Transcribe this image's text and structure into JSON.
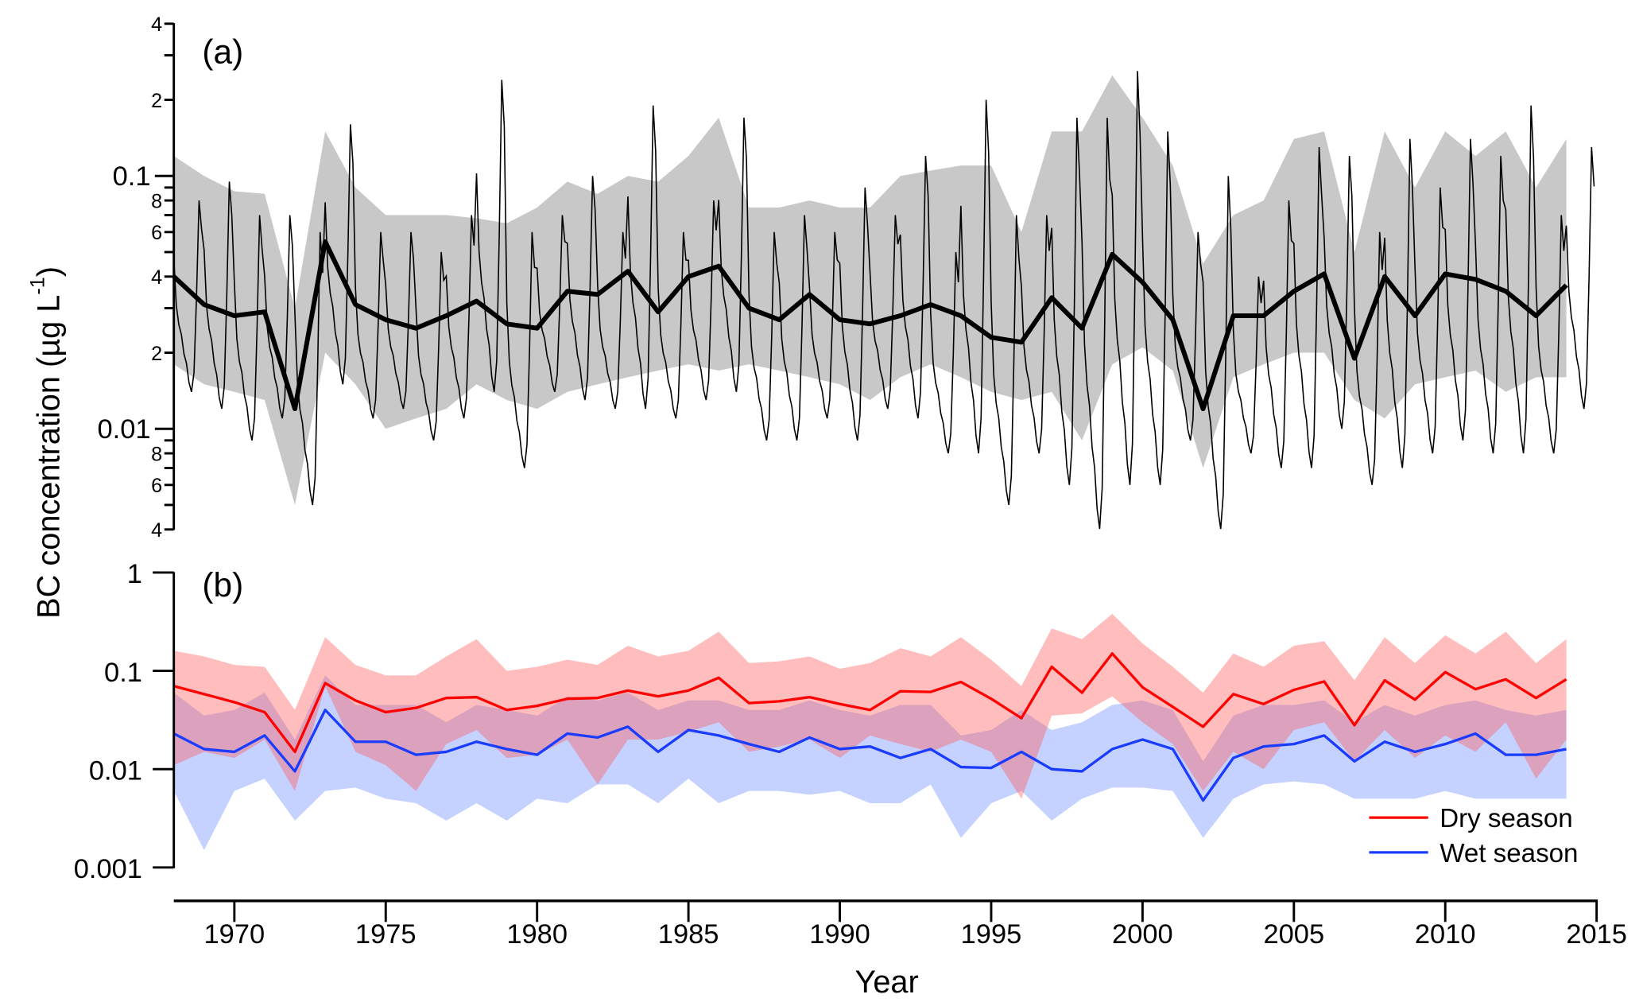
{
  "chart_data": [
    {
      "type": "line",
      "panel_label": "(a)",
      "ylabel": "BC concentration (µg L",
      "ylabel_sup": "-1",
      "ylabel_close": ")",
      "yscale": "log",
      "ylim": [
        0.004,
        0.4
      ],
      "ytick_labels": [
        {
          "v": 0.4,
          "t": "4"
        },
        {
          "v": 0.2,
          "t": "2"
        },
        {
          "v": 0.1,
          "t": "0.1"
        },
        {
          "v": 0.08,
          "t": "8"
        },
        {
          "v": 0.06,
          "t": "6"
        },
        {
          "v": 0.04,
          "t": "4"
        },
        {
          "v": 0.02,
          "t": "2"
        },
        {
          "v": 0.01,
          "t": "0.01"
        },
        {
          "v": 0.008,
          "t": "8"
        },
        {
          "v": 0.006,
          "t": "6"
        },
        {
          "v": 0.004,
          "t": "4"
        }
      ],
      "x_start": 1968,
      "annual_mean": [
        0.04,
        0.031,
        0.028,
        0.029,
        0.012,
        0.055,
        0.031,
        0.027,
        0.025,
        0.028,
        0.032,
        0.026,
        0.025,
        0.035,
        0.034,
        0.042,
        0.029,
        0.04,
        0.044,
        0.03,
        0.027,
        0.034,
        0.027,
        0.026,
        0.028,
        0.031,
        0.028,
        0.023,
        0.022,
        0.033,
        0.025,
        0.049,
        0.038,
        0.027,
        0.012,
        0.028,
        0.028,
        0.035,
        0.041,
        0.019,
        0.04,
        0.028,
        0.041,
        0.039,
        0.035,
        0.028,
        0.037
      ],
      "band_upper": [
        0.12,
        0.1,
        0.087,
        0.085,
        0.03,
        0.15,
        0.09,
        0.07,
        0.07,
        0.07,
        0.068,
        0.065,
        0.075,
        0.095,
        0.085,
        0.1,
        0.095,
        0.12,
        0.17,
        0.075,
        0.075,
        0.08,
        0.075,
        0.075,
        0.1,
        0.105,
        0.11,
        0.11,
        0.06,
        0.15,
        0.15,
        0.25,
        0.17,
        0.11,
        0.045,
        0.07,
        0.08,
        0.14,
        0.15,
        0.05,
        0.15,
        0.09,
        0.15,
        0.12,
        0.15,
        0.09,
        0.14
      ],
      "band_lower": [
        0.018,
        0.015,
        0.014,
        0.013,
        0.005,
        0.02,
        0.015,
        0.01,
        0.011,
        0.012,
        0.015,
        0.013,
        0.012,
        0.014,
        0.015,
        0.016,
        0.017,
        0.018,
        0.017,
        0.018,
        0.017,
        0.016,
        0.015,
        0.013,
        0.016,
        0.018,
        0.016,
        0.014,
        0.013,
        0.014,
        0.009,
        0.018,
        0.021,
        0.017,
        0.007,
        0.016,
        0.018,
        0.02,
        0.02,
        0.013,
        0.011,
        0.015,
        0.016,
        0.017,
        0.014,
        0.016,
        0.016
      ],
      "monthly_annual_max": [
        0.08,
        0.095,
        0.07,
        0.07,
        0.06,
        0.16,
        0.06,
        0.06,
        0.05,
        0.07,
        0.24,
        0.06,
        0.07,
        0.1,
        0.06,
        0.19,
        0.06,
        0.08,
        0.17,
        0.06,
        0.07,
        0.06,
        0.09,
        0.07,
        0.12,
        0.05,
        0.2,
        0.07,
        0.07,
        0.17,
        0.17,
        0.26,
        0.15,
        0.06,
        0.1,
        0.04,
        0.08,
        0.13,
        0.12,
        0.06,
        0.14,
        0.09,
        0.14,
        0.12,
        0.19,
        0.07,
        0.13
      ],
      "monthly_annual_min": [
        0.014,
        0.012,
        0.009,
        0.011,
        0.005,
        0.015,
        0.011,
        0.012,
        0.009,
        0.011,
        0.014,
        0.007,
        0.014,
        0.013,
        0.012,
        0.012,
        0.011,
        0.013,
        0.014,
        0.009,
        0.009,
        0.011,
        0.009,
        0.012,
        0.011,
        0.008,
        0.008,
        0.005,
        0.008,
        0.006,
        0.004,
        0.006,
        0.006,
        0.009,
        0.004,
        0.008,
        0.007,
        0.007,
        0.01,
        0.006,
        0.007,
        0.008,
        0.009,
        0.008,
        0.008,
        0.008,
        0.012
      ]
    },
    {
      "type": "line",
      "panel_label": "(b)",
      "yscale": "log",
      "ylim": [
        0.001,
        1
      ],
      "ytick_labels": [
        {
          "v": 1,
          "t": "1"
        },
        {
          "v": 0.1,
          "t": "0.1"
        },
        {
          "v": 0.01,
          "t": "0.01"
        },
        {
          "v": 0.001,
          "t": "0.001"
        }
      ],
      "xlabel": "Year",
      "xlim": [
        1968,
        2015
      ],
      "xtick_labels": [
        "1970",
        "1975",
        "1980",
        "1985",
        "1990",
        "1995",
        "2000",
        "2005",
        "2010",
        "2015"
      ],
      "x_start": 1968,
      "legend": {
        "placement": "bottom-right"
      },
      "series": [
        {
          "name": "Dry season",
          "color": "#ff0000",
          "band_color": "#ff5a5a",
          "values": [
            0.07,
            0.058,
            0.048,
            0.038,
            0.015,
            0.075,
            0.05,
            0.038,
            0.042,
            0.053,
            0.054,
            0.04,
            0.044,
            0.052,
            0.053,
            0.063,
            0.055,
            0.063,
            0.085,
            0.047,
            0.049,
            0.054,
            0.046,
            0.04,
            0.062,
            0.061,
            0.077,
            0.052,
            0.033,
            0.11,
            0.06,
            0.15,
            0.068,
            0.043,
            0.027,
            0.058,
            0.046,
            0.064,
            0.078,
            0.028,
            0.08,
            0.051,
            0.097,
            0.065,
            0.082,
            0.053,
            0.082
          ],
          "upper": [
            0.16,
            0.14,
            0.115,
            0.11,
            0.04,
            0.22,
            0.115,
            0.09,
            0.09,
            0.14,
            0.21,
            0.1,
            0.11,
            0.13,
            0.115,
            0.18,
            0.14,
            0.16,
            0.25,
            0.12,
            0.125,
            0.14,
            0.105,
            0.12,
            0.17,
            0.14,
            0.22,
            0.13,
            0.07,
            0.27,
            0.21,
            0.38,
            0.19,
            0.11,
            0.06,
            0.15,
            0.11,
            0.18,
            0.2,
            0.08,
            0.22,
            0.12,
            0.23,
            0.15,
            0.25,
            0.12,
            0.21
          ],
          "lower": [
            0.011,
            0.015,
            0.013,
            0.02,
            0.006,
            0.07,
            0.015,
            0.011,
            0.006,
            0.018,
            0.025,
            0.013,
            0.014,
            0.02,
            0.007,
            0.02,
            0.02,
            0.024,
            0.03,
            0.015,
            0.017,
            0.02,
            0.013,
            0.022,
            0.018,
            0.015,
            0.02,
            0.015,
            0.005,
            0.035,
            0.037,
            0.055,
            0.03,
            0.018,
            0.006,
            0.015,
            0.01,
            0.025,
            0.03,
            0.012,
            0.025,
            0.013,
            0.022,
            0.015,
            0.03,
            0.008,
            0.02
          ]
        },
        {
          "name": "Wet season",
          "color": "#1a3cff",
          "band_color": "#6f8cff",
          "values": [
            0.023,
            0.016,
            0.015,
            0.022,
            0.0095,
            0.04,
            0.019,
            0.019,
            0.014,
            0.015,
            0.019,
            0.016,
            0.014,
            0.023,
            0.021,
            0.027,
            0.015,
            0.025,
            0.022,
            0.018,
            0.015,
            0.021,
            0.016,
            0.017,
            0.013,
            0.016,
            0.0105,
            0.0103,
            0.015,
            0.01,
            0.0095,
            0.016,
            0.02,
            0.016,
            0.0048,
            0.013,
            0.017,
            0.018,
            0.022,
            0.012,
            0.019,
            0.015,
            0.018,
            0.023,
            0.014,
            0.014,
            0.016
          ],
          "upper": [
            0.06,
            0.035,
            0.04,
            0.06,
            0.02,
            0.09,
            0.045,
            0.045,
            0.045,
            0.03,
            0.045,
            0.04,
            0.035,
            0.055,
            0.05,
            0.06,
            0.04,
            0.05,
            0.05,
            0.04,
            0.04,
            0.05,
            0.04,
            0.035,
            0.045,
            0.045,
            0.022,
            0.025,
            0.04,
            0.025,
            0.03,
            0.045,
            0.05,
            0.04,
            0.012,
            0.035,
            0.045,
            0.045,
            0.05,
            0.03,
            0.045,
            0.035,
            0.045,
            0.05,
            0.04,
            0.035,
            0.04
          ],
          "lower": [
            0.006,
            0.0015,
            0.006,
            0.008,
            0.003,
            0.006,
            0.0065,
            0.005,
            0.0045,
            0.003,
            0.0045,
            0.003,
            0.005,
            0.0045,
            0.007,
            0.007,
            0.0045,
            0.008,
            0.0045,
            0.006,
            0.006,
            0.0055,
            0.006,
            0.0045,
            0.0045,
            0.007,
            0.002,
            0.0045,
            0.006,
            0.003,
            0.005,
            0.0065,
            0.0065,
            0.006,
            0.002,
            0.005,
            0.007,
            0.0075,
            0.007,
            0.005,
            0.005,
            0.005,
            0.006,
            0.005,
            0.005,
            0.005,
            0.005
          ]
        }
      ]
    }
  ]
}
